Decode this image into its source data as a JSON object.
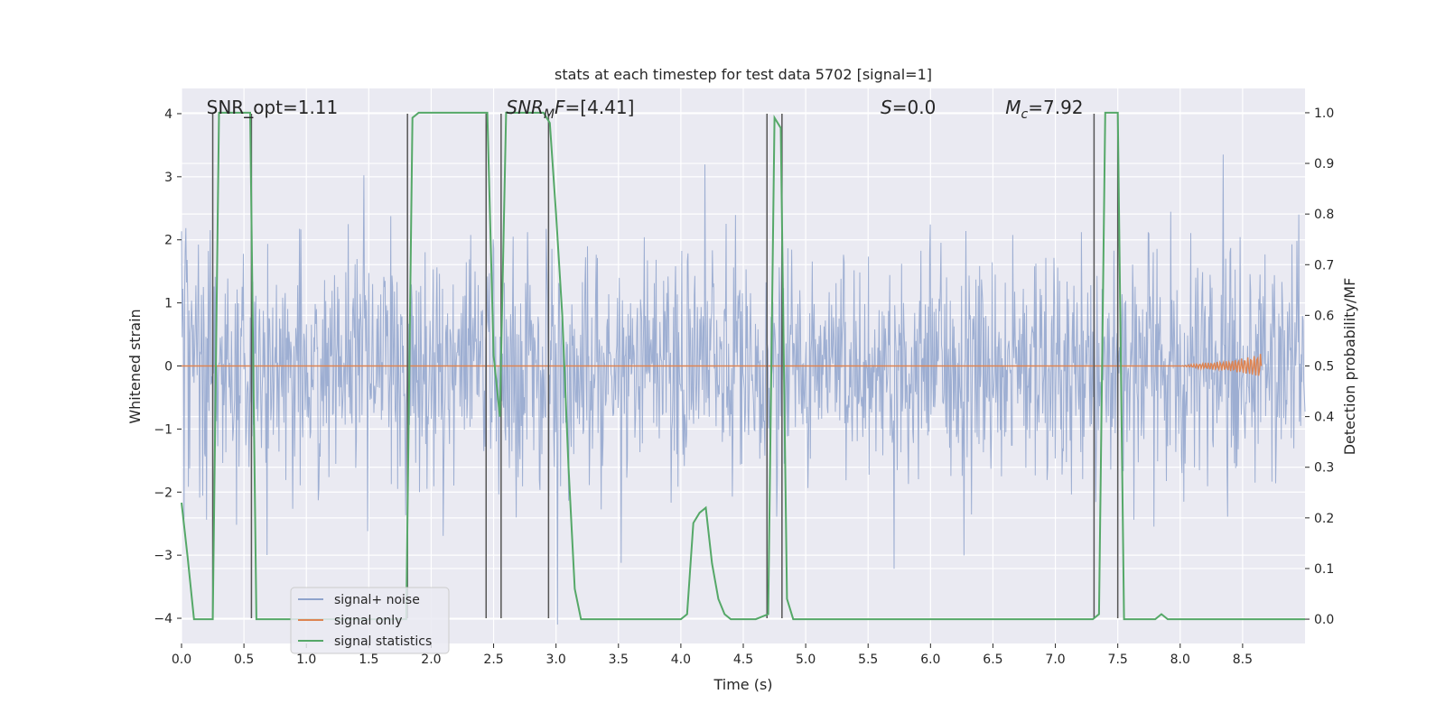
{
  "chart_data": {
    "type": "line",
    "title": "stats at each timestep for test data 5702 [signal=1]",
    "xlabel": "Time (s)",
    "ylabel": "Whitened strain",
    "ylabel_right": "Detection probability/MF",
    "xlim": [
      0,
      9.0
    ],
    "ylim": [
      -4.4,
      4.4
    ],
    "ylim_right": [
      -0.048,
      1.048
    ],
    "xticks": [
      "0.0",
      "0.5",
      "1.0",
      "1.5",
      "2.0",
      "2.5",
      "3.0",
      "3.5",
      "4.0",
      "4.5",
      "5.0",
      "5.5",
      "6.0",
      "6.5",
      "7.0",
      "7.5",
      "8.0",
      "8.5"
    ],
    "xtick_values": [
      0,
      0.5,
      1,
      1.5,
      2,
      2.5,
      3,
      3.5,
      4,
      4.5,
      5,
      5.5,
      6,
      6.5,
      7,
      7.5,
      8,
      8.5
    ],
    "yticks": [
      "4",
      "3",
      "2",
      "1",
      "0",
      "−1",
      "−2",
      "−3",
      "−4"
    ],
    "ytick_values": [
      4,
      3,
      2,
      1,
      0,
      -1,
      -2,
      -3,
      -4
    ],
    "yticks_right": [
      "1.0",
      "0.9",
      "0.8",
      "0.7",
      "0.6",
      "0.5",
      "0.4",
      "0.3",
      "0.2",
      "0.1",
      "0.0"
    ],
    "ytick_right_values": [
      1.0,
      0.9,
      0.8,
      0.7,
      0.6,
      0.5,
      0.4,
      0.3,
      0.2,
      0.1,
      0.0
    ],
    "grid": true,
    "legend_position": "lower-left",
    "annotations": [
      {
        "x": 0.2,
        "y": 4.1,
        "text": "SNR_opt=1.11"
      },
      {
        "x": 2.6,
        "y": 4.1,
        "text": "SNR_MF=[4.41]"
      },
      {
        "x": 5.6,
        "y": 4.1,
        "text": "S=0.0"
      },
      {
        "x": 6.6,
        "y": 4.1,
        "text": "M_c=7.92"
      }
    ],
    "series": [
      {
        "name": "signal+ noise",
        "color": "#8fa3cc",
        "kind": "noise",
        "sigma": 0.8,
        "npoints": 1800,
        "axis": "left"
      },
      {
        "name": "signal only",
        "color": "#dd8452",
        "kind": "chirp",
        "axis": "left",
        "x": [
          0.0,
          8.0,
          8.2,
          8.4,
          8.5,
          8.6,
          8.65
        ],
        "amplitude": [
          0.0,
          0.0,
          0.05,
          0.08,
          0.12,
          0.16,
          0.2
        ]
      },
      {
        "name": "signal statistics",
        "color": "#55a868",
        "kind": "line",
        "axis": "right",
        "x": [
          0.0,
          0.05,
          0.1,
          0.15,
          0.2,
          0.25,
          0.3,
          0.35,
          0.4,
          0.45,
          0.5,
          0.55,
          0.6,
          0.65,
          1.8,
          1.85,
          1.9,
          1.95,
          2.4,
          2.45,
          2.5,
          2.55,
          2.6,
          2.65,
          2.9,
          2.95,
          3.0,
          3.05,
          3.1,
          3.15,
          3.2,
          3.3,
          4.0,
          4.05,
          4.1,
          4.15,
          4.2,
          4.25,
          4.3,
          4.35,
          4.4,
          4.5,
          4.6,
          4.7,
          4.75,
          4.8,
          4.85,
          4.9,
          4.95,
          7.3,
          7.35,
          7.4,
          7.45,
          7.5,
          7.55,
          7.6,
          7.8,
          7.85,
          7.9,
          8.0,
          9.0
        ],
        "y": [
          0.23,
          0.12,
          0.0,
          0.0,
          0.0,
          0.0,
          1.0,
          1.0,
          1.0,
          1.0,
          1.0,
          1.0,
          0.0,
          0.0,
          0.0,
          0.99,
          1.0,
          1.0,
          1.0,
          1.0,
          0.52,
          0.4,
          1.0,
          1.0,
          1.0,
          0.98,
          0.8,
          0.6,
          0.3,
          0.06,
          0.0,
          0.0,
          0.0,
          0.01,
          0.19,
          0.21,
          0.22,
          0.11,
          0.04,
          0.01,
          0.0,
          0.0,
          0.0,
          0.01,
          0.99,
          0.97,
          0.04,
          0.0,
          0.0,
          0.0,
          0.01,
          1.0,
          1.0,
          1.0,
          0.0,
          0.0,
          0.0,
          0.01,
          0.0,
          0.0,
          0.0
        ]
      }
    ],
    "vertical_lines": [
      {
        "x": 0.25,
        "ymin": -4.0,
        "ymax": 4.0
      },
      {
        "x": 0.56,
        "ymin": -4.0,
        "ymax": 4.0
      },
      {
        "x": 1.81,
        "ymin": -4.0,
        "ymax": 4.0
      },
      {
        "x": 2.44,
        "ymin": -4.0,
        "ymax": 4.0
      },
      {
        "x": 2.56,
        "ymin": -4.0,
        "ymax": 4.0
      },
      {
        "x": 2.94,
        "ymin": -4.0,
        "ymax": 4.0
      },
      {
        "x": 4.69,
        "ymin": -4.0,
        "ymax": 4.0
      },
      {
        "x": 4.81,
        "ymin": -4.0,
        "ymax": 4.0
      },
      {
        "x": 7.31,
        "ymin": -4.0,
        "ymax": 4.0
      },
      {
        "x": 7.5,
        "ymin": -4.0,
        "ymax": 4.0
      }
    ],
    "vertical_line_color": "#555555"
  },
  "legend": {
    "items": [
      {
        "label": "signal+ noise",
        "color": "#8fa3cc"
      },
      {
        "label": "signal only",
        "color": "#dd8452"
      },
      {
        "label": "signal statistics",
        "color": "#55a868"
      }
    ]
  }
}
